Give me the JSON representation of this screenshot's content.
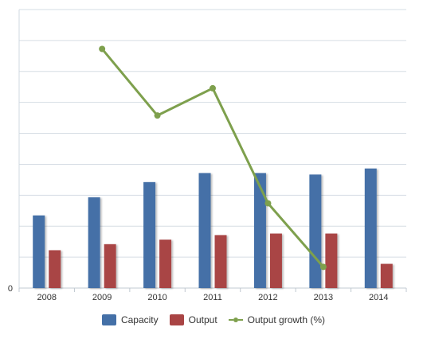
{
  "chart_data": {
    "type": "bar",
    "categories": [
      "2008",
      "2009",
      "2010",
      "2011",
      "2012",
      "2013",
      "2014"
    ],
    "series": [
      {
        "name": "Capacity",
        "type": "bar",
        "values": [
          24,
          30,
          35,
          38,
          38,
          37.5,
          39.5
        ]
      },
      {
        "name": "Output",
        "type": "bar",
        "values": [
          12.5,
          14.5,
          16,
          17.5,
          18,
          18,
          8
        ]
      },
      {
        "name": "Output growth (%)",
        "type": "line",
        "values": [
          null,
          79,
          57,
          66,
          28,
          7,
          null
        ]
      }
    ],
    "y_tick_labels": [
      "0"
    ],
    "ylim": [
      0,
      92
    ],
    "grid": true,
    "legend_position": "bottom",
    "colors": {
      "Capacity": "#4470a7",
      "Output": "#a94444",
      "Output growth (%)": "#7ea04d"
    }
  }
}
